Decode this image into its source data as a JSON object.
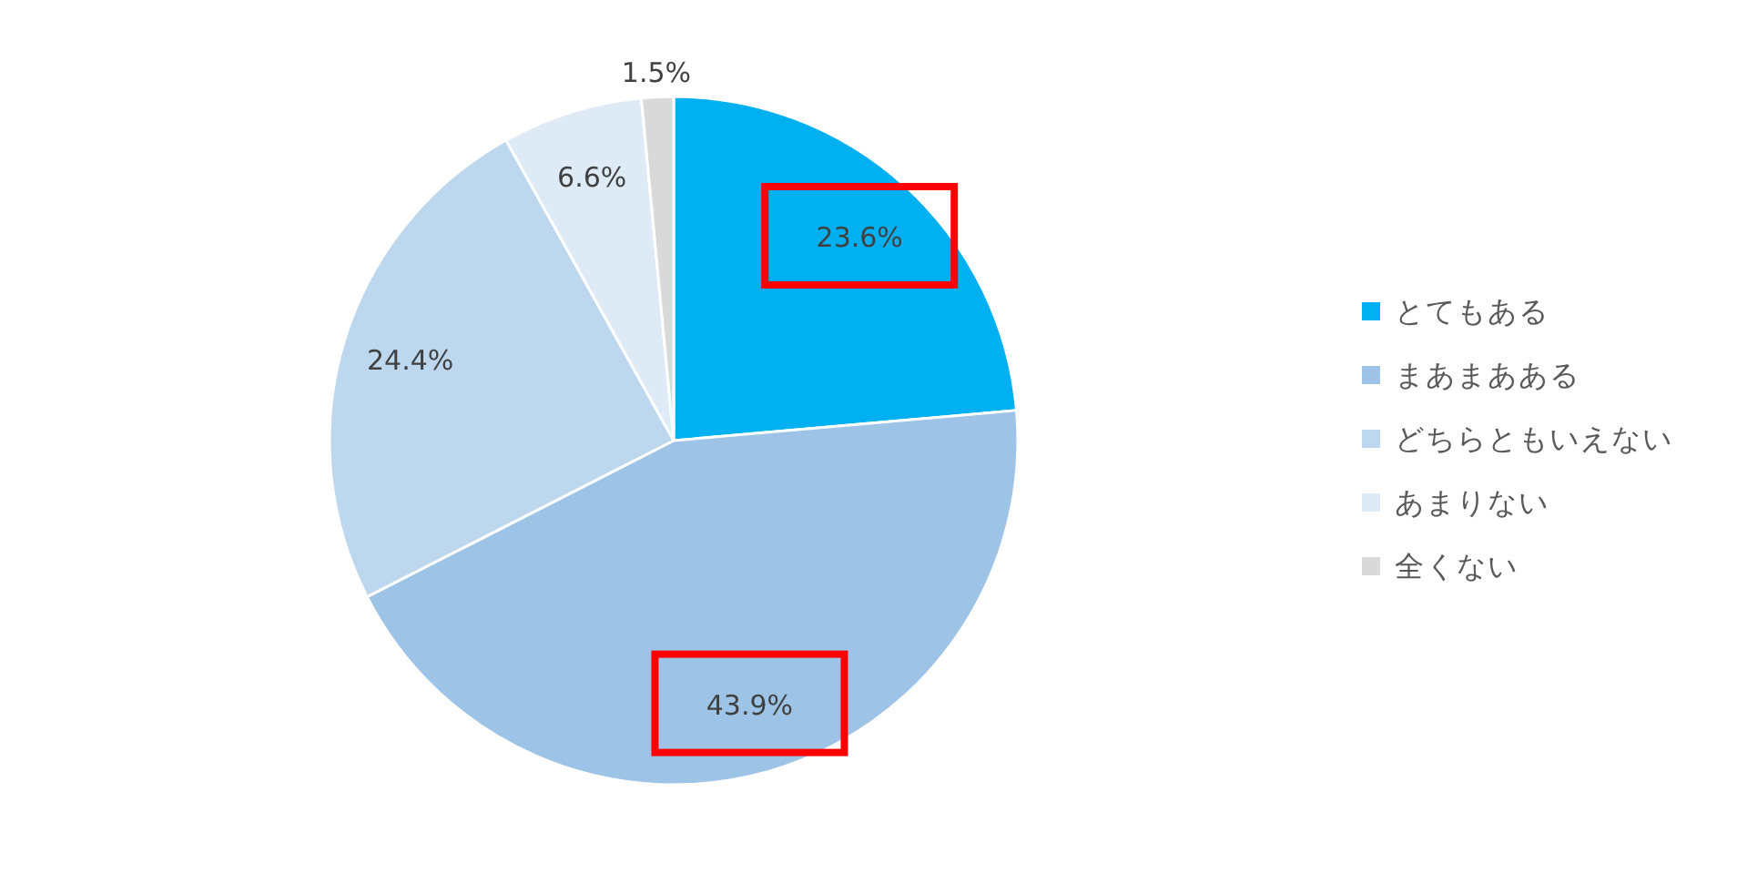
{
  "chart_data": {
    "type": "pie",
    "categories": [
      "とてもある",
      "まあまあある",
      "どちらともいえない",
      "あまりない",
      "全くない"
    ],
    "values": [
      23.6,
      43.9,
      24.4,
      6.6,
      1.5
    ],
    "colors": [
      "#00b0f0",
      "#9dc3e6",
      "#bdd7ee",
      "#deebf7",
      "#d9d9d9"
    ],
    "value_labels": [
      "23.6%",
      "43.9%",
      "24.4%",
      "6.6%",
      "1.5%"
    ],
    "legend": "right"
  }
}
